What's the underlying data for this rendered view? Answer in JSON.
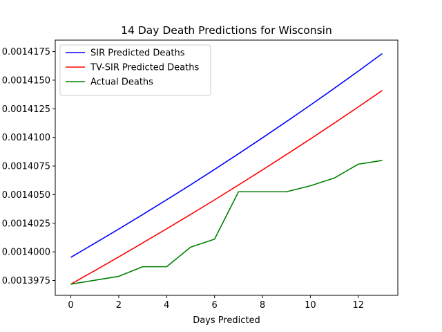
{
  "chart_data": {
    "type": "line",
    "title": "14 Day Death Predictions for Wisconsin",
    "xlabel": "Days Predicted",
    "ylabel": "",
    "xlim": [
      -0.65,
      13.65
    ],
    "ylim": [
      0.0013962,
      0.0014185
    ],
    "xticks": [
      0,
      2,
      4,
      6,
      8,
      10,
      12
    ],
    "xtick_labels": [
      "0",
      "2",
      "4",
      "6",
      "8",
      "10",
      "12"
    ],
    "yticks": [
      0.0013975,
      0.0014,
      0.0014025,
      0.001405,
      0.0014075,
      0.00141,
      0.0014125,
      0.001415,
      0.0014175
    ],
    "ytick_labels": [
      "0.0013975",
      "0.0014000",
      "0.0014025",
      "0.0014050",
      "0.0014075",
      "0.0014100",
      "0.0014125",
      "0.0014150",
      "0.0014175"
    ],
    "legend_position": "top-left",
    "grid": false,
    "x": [
      0,
      1,
      2,
      3,
      4,
      5,
      6,
      7,
      8,
      9,
      10,
      11,
      12,
      13
    ],
    "series": [
      {
        "name": "SIR Predicted Deaths",
        "color": "#0000ff",
        "values": [
          0.00139952,
          0.00140075,
          0.00140199,
          0.00140326,
          0.00140455,
          0.00140586,
          0.0014072,
          0.00140857,
          0.00140996,
          0.00141138,
          0.00141282,
          0.00141429,
          0.00141579,
          0.00141732
        ]
      },
      {
        "name": "TV-SIR Predicted Deaths",
        "color": "#ff0000",
        "values": [
          0.00139718,
          0.00139836,
          0.00139956,
          0.00140078,
          0.00140201,
          0.00140327,
          0.00140454,
          0.00140584,
          0.00140716,
          0.0014085,
          0.00140986,
          0.00141125,
          0.00141266,
          0.0014141
        ]
      },
      {
        "name": "Actual Deaths",
        "color": "#008000",
        "values": [
          0.00139718,
          0.00139752,
          0.00139786,
          0.0013987,
          0.0013987,
          0.00140041,
          0.00140111,
          0.00140525,
          0.00140525,
          0.00140525,
          0.00140577,
          0.00140645,
          0.00140766,
          0.00140799
        ]
      }
    ]
  }
}
